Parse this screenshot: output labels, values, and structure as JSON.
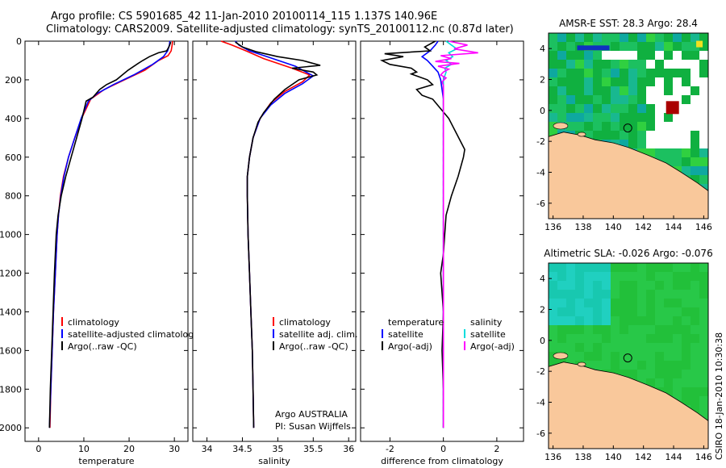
{
  "title": {
    "line1": "Argo profile: CS 5901685_42 11-Jan-2010 20100114_115 1.137S 140.96E",
    "line2": "Climatology: CARS2009. Satellite-adjusted climatology: synTS_20100112.nc (0.87d later)"
  },
  "stamp": "CSIRO 18-Jan-2010 10:30:38",
  "chart_data": [
    {
      "type": "line",
      "panel": "temperature",
      "xlabel": "temperature",
      "xlim": [
        -3,
        33
      ],
      "ylim": [
        2070,
        0
      ],
      "xticks": [
        0,
        10,
        20,
        30
      ],
      "yticks": [
        0,
        200,
        400,
        600,
        800,
        1000,
        1200,
        1400,
        1600,
        1800,
        2000
      ],
      "legend": [
        "climatology",
        "satellite-adjusted climatology",
        "Argo(..raw -QC)"
      ],
      "series": [
        {
          "name": "climatology",
          "color": "#ff0000",
          "points": [
            [
              29.6,
              0
            ],
            [
              29.5,
              20
            ],
            [
              29.3,
              50
            ],
            [
              28.6,
              75
            ],
            [
              26.5,
              100
            ],
            [
              23.5,
              150
            ],
            [
              19,
              200
            ],
            [
              14.5,
              250
            ],
            [
              11.5,
              300
            ],
            [
              9.5,
              400
            ],
            [
              8,
              500
            ],
            [
              6.6,
              600
            ],
            [
              5.5,
              700
            ],
            [
              4.8,
              800
            ],
            [
              4.4,
              900
            ],
            [
              4.1,
              1000
            ],
            [
              3.7,
              1200
            ],
            [
              3.3,
              1400
            ],
            [
              3.0,
              1600
            ],
            [
              2.7,
              1800
            ],
            [
              2.5,
              2000
            ]
          ]
        },
        {
          "name": "satellite-adjusted",
          "color": "#0000ff",
          "points": [
            [
              29.0,
              0
            ],
            [
              28.9,
              20
            ],
            [
              28.5,
              50
            ],
            [
              27.6,
              80
            ],
            [
              25.2,
              120
            ],
            [
              21,
              175
            ],
            [
              16.5,
              225
            ],
            [
              13,
              270
            ],
            [
              11,
              310
            ],
            [
              9.4,
              400
            ],
            [
              8,
              500
            ],
            [
              6.6,
              600
            ],
            [
              5.6,
              700
            ],
            [
              4.9,
              800
            ],
            [
              4.4,
              900
            ],
            [
              4.1,
              1000
            ],
            [
              3.7,
              1200
            ],
            [
              3.3,
              1400
            ],
            [
              3.0,
              1600
            ],
            [
              2.7,
              1800
            ],
            [
              2.4,
              2000
            ]
          ]
        },
        {
          "name": "Argo(..raw -QC)",
          "color": "#000000",
          "points": [
            [
              29.2,
              5
            ],
            [
              28.8,
              30
            ],
            [
              28.3,
              50
            ],
            [
              26.5,
              60
            ],
            [
              24.5,
              80
            ],
            [
              23,
              100
            ],
            [
              22,
              115
            ],
            [
              19.8,
              150
            ],
            [
              18.5,
              175
            ],
            [
              17.2,
              200
            ],
            [
              15,
              225
            ],
            [
              13.5,
              250
            ],
            [
              12,
              290
            ],
            [
              10.5,
              310
            ],
            [
              9.6,
              400
            ],
            [
              8.4,
              500
            ],
            [
              7.2,
              600
            ],
            [
              6.0,
              700
            ],
            [
              5.0,
              800
            ],
            [
              4.3,
              900
            ],
            [
              3.9,
              1000
            ],
            [
              3.5,
              1200
            ],
            [
              3.2,
              1400
            ],
            [
              2.9,
              1600
            ],
            [
              2.6,
              1800
            ],
            [
              2.4,
              2000
            ]
          ]
        }
      ]
    },
    {
      "type": "line",
      "panel": "salinity",
      "xlabel": "salinity",
      "xlim": [
        33.8,
        36.1
      ],
      "ylim": [
        2070,
        0
      ],
      "xticks": [
        34,
        34.5,
        35,
        35.5,
        36
      ],
      "legend": [
        "climatology",
        "satellite adj. clim.",
        "Argo(..raw -QC)"
      ],
      "series": [
        {
          "name": "climatology",
          "color": "#ff0000",
          "points": [
            [
              34.2,
              0
            ],
            [
              34.35,
              20
            ],
            [
              34.55,
              50
            ],
            [
              34.8,
              90
            ],
            [
              35.2,
              140
            ],
            [
              35.45,
              175
            ],
            [
              35.35,
              210
            ],
            [
              35.1,
              260
            ],
            [
              34.9,
              320
            ],
            [
              34.75,
              400
            ],
            [
              34.65,
              500
            ],
            [
              34.6,
              600
            ],
            [
              34.57,
              700
            ],
            [
              34.57,
              800
            ],
            [
              34.58,
              1000
            ],
            [
              34.6,
              1200
            ],
            [
              34.62,
              1400
            ],
            [
              34.64,
              1600
            ],
            [
              34.65,
              1800
            ],
            [
              34.66,
              2000
            ]
          ]
        },
        {
          "name": "satellite-adjusted",
          "color": "#0000ff",
          "points": [
            [
              34.4,
              0
            ],
            [
              34.45,
              20
            ],
            [
              34.6,
              50
            ],
            [
              34.85,
              80
            ],
            [
              35.25,
              130
            ],
            [
              35.5,
              180
            ],
            [
              35.35,
              220
            ],
            [
              35.1,
              270
            ],
            [
              34.9,
              330
            ],
            [
              34.75,
              400
            ],
            [
              34.65,
              500
            ],
            [
              34.6,
              600
            ],
            [
              34.57,
              700
            ],
            [
              34.57,
              800
            ],
            [
              34.58,
              1000
            ],
            [
              34.6,
              1200
            ],
            [
              34.62,
              1400
            ],
            [
              34.64,
              1600
            ],
            [
              34.65,
              1800
            ],
            [
              34.66,
              2000
            ]
          ]
        },
        {
          "name": "Argo(..raw -QC)",
          "color": "#000000",
          "points": [
            [
              34.4,
              5
            ],
            [
              34.5,
              30
            ],
            [
              34.7,
              55
            ],
            [
              35.0,
              80
            ],
            [
              35.35,
              100
            ],
            [
              35.6,
              125
            ],
            [
              35.2,
              140
            ],
            [
              35.5,
              160
            ],
            [
              35.55,
              175
            ],
            [
              35.3,
              200
            ],
            [
              35.1,
              250
            ],
            [
              34.95,
              300
            ],
            [
              34.8,
              370
            ],
            [
              34.72,
              420
            ],
            [
              34.65,
              500
            ],
            [
              34.6,
              600
            ],
            [
              34.57,
              700
            ],
            [
              34.57,
              800
            ],
            [
              34.58,
              1000
            ],
            [
              34.6,
              1200
            ],
            [
              34.62,
              1400
            ],
            [
              34.64,
              1600
            ],
            [
              34.65,
              1800
            ],
            [
              34.66,
              2000
            ]
          ]
        }
      ],
      "annotation": [
        "Argo AUSTRALIA",
        "PI: Susan Wijffels"
      ]
    },
    {
      "type": "line",
      "panel": "difference",
      "xlabel": "difference from climatology",
      "xlim": [
        -3.1,
        3.0
      ],
      "ylim": [
        2070,
        0
      ],
      "xticks": [
        -2,
        0,
        2
      ],
      "legend_temperature": [
        "temperature",
        "satellite",
        "Argo(-adj)"
      ],
      "legend_salinity": [
        "salinity",
        "satellite",
        "Argo(-adj)"
      ],
      "series": [
        {
          "name": "temp satellite",
          "color": "#0000ff",
          "points": [
            [
              -0.2,
              0
            ],
            [
              -0.3,
              20
            ],
            [
              -0.5,
              50
            ],
            [
              -0.8,
              80
            ],
            [
              -0.6,
              100
            ],
            [
              -0.4,
              130
            ],
            [
              -0.2,
              160
            ],
            [
              -0.1,
              200
            ],
            [
              0,
              300
            ],
            [
              0,
              2000
            ]
          ]
        },
        {
          "name": "temp Argo(-adj)",
          "color": "#000000",
          "points": [
            [
              -0.3,
              0
            ],
            [
              -0.7,
              30
            ],
            [
              -0.5,
              50
            ],
            [
              -2.2,
              65
            ],
            [
              -1.5,
              80
            ],
            [
              -2.3,
              100
            ],
            [
              -2.0,
              120
            ],
            [
              -1.2,
              140
            ],
            [
              -1.0,
              160
            ],
            [
              -1.2,
              170
            ],
            [
              -1.0,
              180
            ],
            [
              -0.6,
              200
            ],
            [
              -0.4,
              225
            ],
            [
              -1.0,
              250
            ],
            [
              -0.8,
              280
            ],
            [
              -0.4,
              300
            ],
            [
              0.2,
              400
            ],
            [
              0.5,
              480
            ],
            [
              0.8,
              560
            ],
            [
              0.75,
              600
            ],
            [
              0.55,
              700
            ],
            [
              0.3,
              800
            ],
            [
              0.1,
              900
            ],
            [
              0.05,
              1000
            ],
            [
              0,
              1100
            ],
            [
              -0.1,
              1200
            ],
            [
              0,
              1400
            ],
            [
              -0.05,
              1600
            ],
            [
              0,
              1800
            ],
            [
              0,
              2000
            ]
          ]
        },
        {
          "name": "sal satellite",
          "color": "#00dddd",
          "points": [
            [
              0.1,
              0
            ],
            [
              0.3,
              20
            ],
            [
              0.5,
              40
            ],
            [
              0.2,
              60
            ],
            [
              0.35,
              80
            ],
            [
              0.1,
              100
            ],
            [
              0.3,
              120
            ],
            [
              0.05,
              140
            ],
            [
              0.1,
              160
            ],
            [
              0,
              200
            ],
            [
              0,
              2000
            ]
          ]
        },
        {
          "name": "sal Argo(-adj)",
          "color": "#ff00ff",
          "points": [
            [
              0.2,
              0
            ],
            [
              0.9,
              20
            ],
            [
              0.4,
              40
            ],
            [
              1.3,
              60
            ],
            [
              -0.1,
              75
            ],
            [
              0.3,
              90
            ],
            [
              -0.3,
              105
            ],
            [
              0.6,
              115
            ],
            [
              -0.2,
              130
            ],
            [
              0.2,
              145
            ],
            [
              0,
              160
            ],
            [
              -0.1,
              175
            ],
            [
              0.1,
              190
            ],
            [
              -0.05,
              210
            ],
            [
              0,
              230
            ],
            [
              0,
              2000
            ]
          ]
        }
      ]
    },
    {
      "type": "heatmap",
      "panel": "sst",
      "title": "AMSR-E SST: 28.3 Argo: 28.4",
      "xlim": [
        135.7,
        146.3
      ],
      "ylim": [
        -7,
        5
      ],
      "xticks": [
        136,
        138,
        140,
        142,
        144,
        146
      ],
      "yticks": [
        -6,
        -4,
        -2,
        0,
        2,
        4
      ],
      "argo_location": [
        140.96,
        -1.137
      ]
    },
    {
      "type": "heatmap",
      "panel": "sla",
      "title": "Altimetric SLA: -0.026 Argo: -0.076",
      "xlim": [
        135.7,
        146.3
      ],
      "ylim": [
        -7,
        5
      ],
      "xticks": [
        136,
        138,
        140,
        142,
        144,
        146
      ],
      "yticks": [
        -6,
        -4,
        -2,
        0,
        2,
        4
      ],
      "argo_location": [
        140.96,
        -1.137
      ]
    }
  ]
}
